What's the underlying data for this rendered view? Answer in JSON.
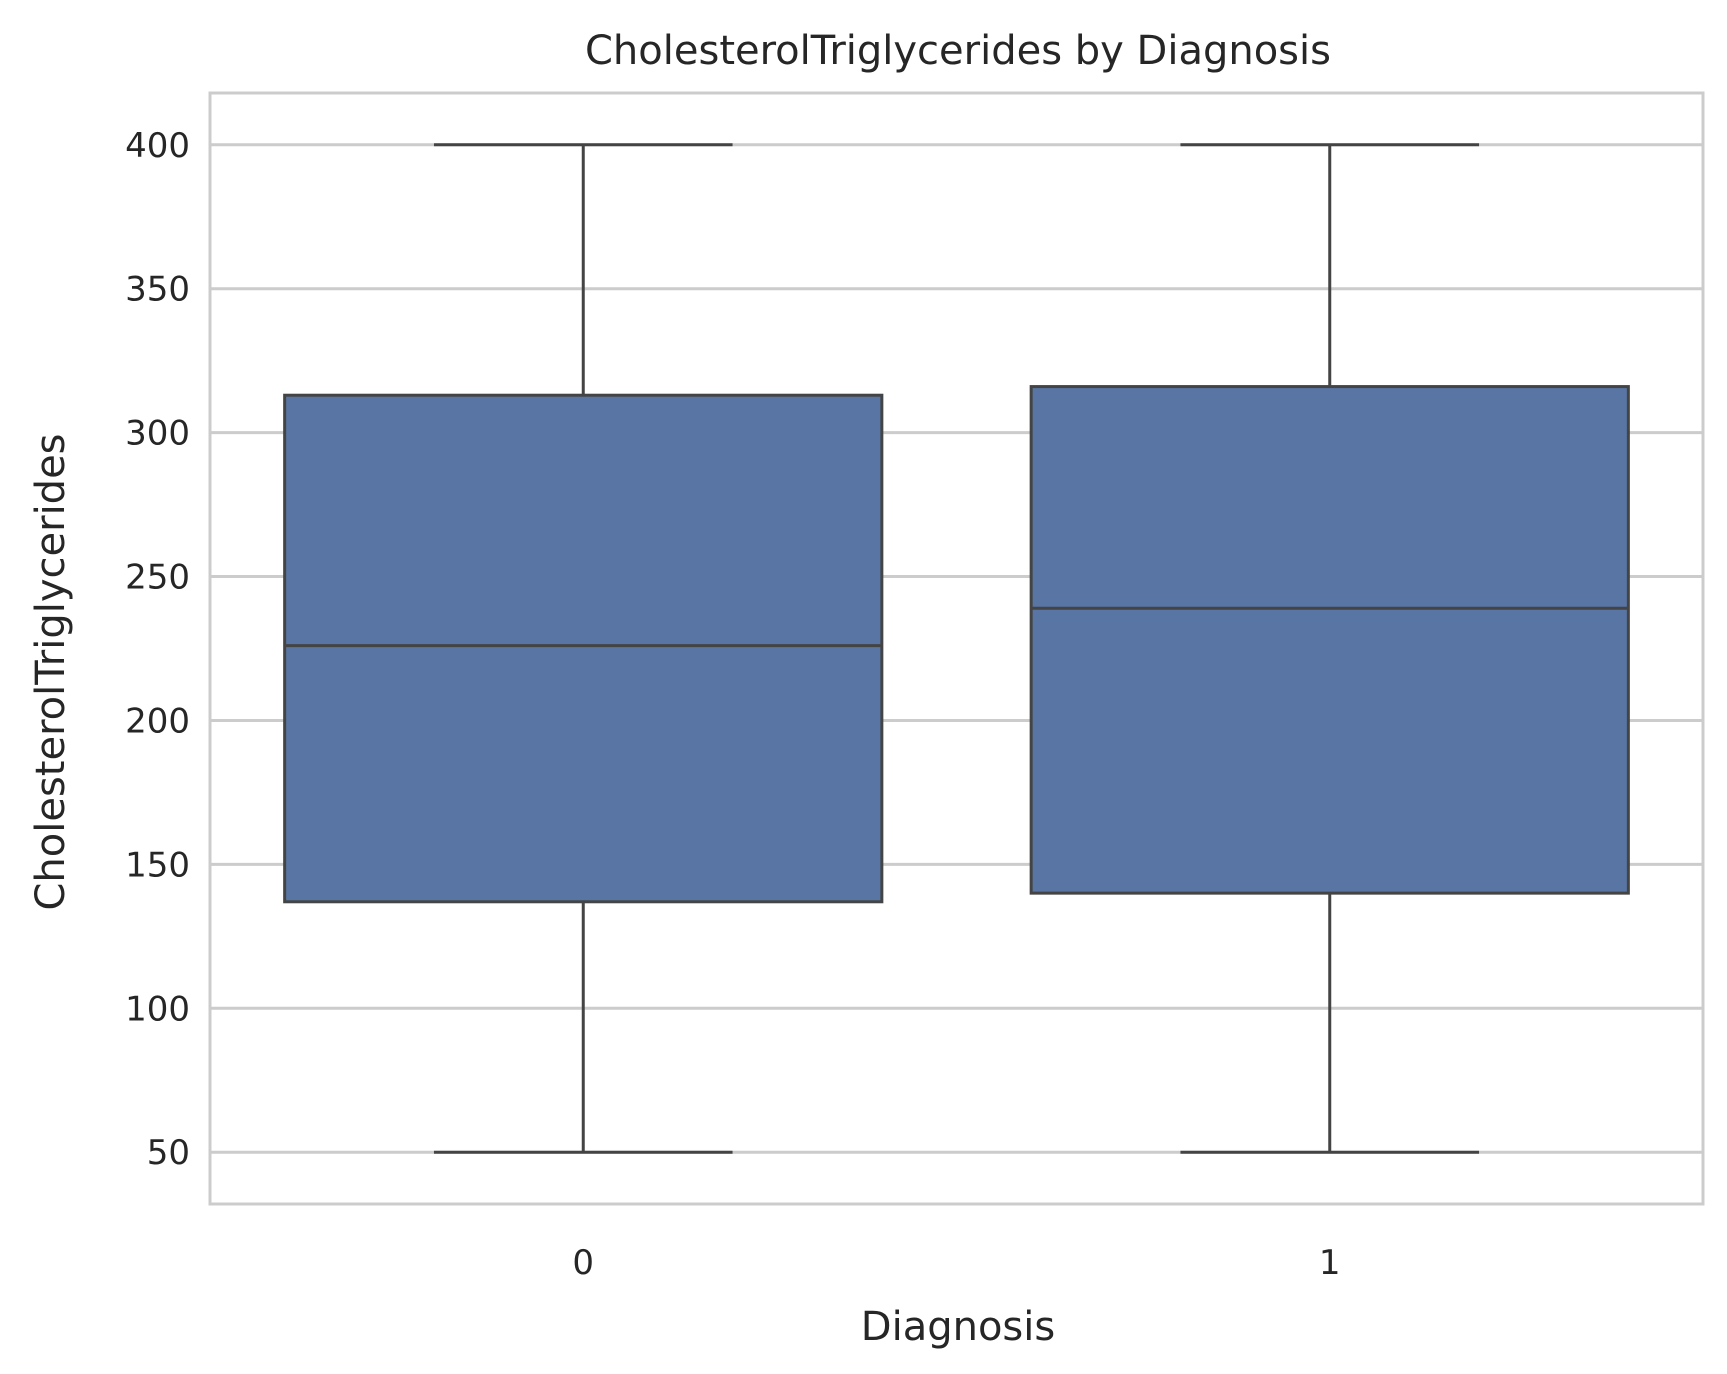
{
  "chart_data": {
    "type": "box",
    "title": "CholesterolTriglycerides by Diagnosis",
    "xlabel": "Diagnosis",
    "ylabel": "CholesterolTriglycerides",
    "ylim": [
      32,
      418
    ],
    "yticks": [
      50,
      100,
      150,
      200,
      250,
      300,
      350,
      400
    ],
    "categories": [
      "0",
      "1"
    ],
    "boxes": [
      {
        "category": "0",
        "whisker_low": 50,
        "q1": 137,
        "median": 226,
        "q3": 313,
        "whisker_high": 400
      },
      {
        "category": "1",
        "whisker_low": 50,
        "q1": 140,
        "median": 239,
        "q3": 316,
        "whisker_high": 400
      }
    ],
    "grid": true,
    "colors": {
      "box_fill": "#5875a4",
      "line": "#444444",
      "grid": "#cccccc",
      "frame": "#cccccc"
    }
  }
}
